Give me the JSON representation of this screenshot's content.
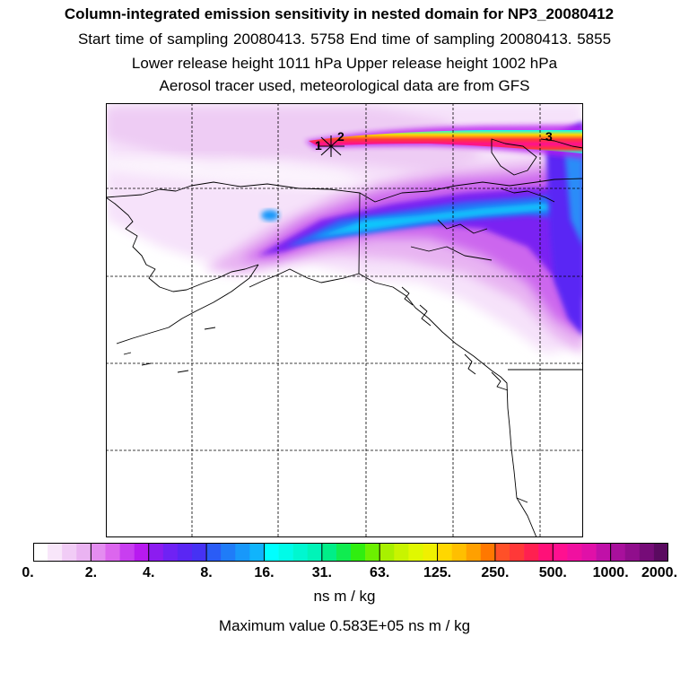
{
  "header": {
    "title": "Column-integrated emission sensitivity in nested domain for NP3_20080412",
    "sampling_line": "Start time of sampling 20080413.  5758     End time of sampling 20080413.  5855",
    "release_line": "Lower release height 1011 hPa        Upper release height 1002 hPa",
    "tracer_line": "Aerosol tracer used, meteorological data are from GFS"
  },
  "map": {
    "region": "Alaska, Yukon and British Columbia coast",
    "markers": [
      "1",
      "2",
      "3"
    ],
    "colors": {
      "land_border": "#000000",
      "grid": "#000000",
      "background": "#ffffff"
    }
  },
  "colorbar": {
    "ticks": [
      "0.",
      "2.",
      "4.",
      "8.",
      "16.",
      "31.",
      "63.",
      "125.",
      "250.",
      "500.",
      "1000.",
      "2000."
    ],
    "colors": [
      "#ffffff",
      "#f8e6fa",
      "#f1ccf6",
      "#eab3f2",
      "#e48df0",
      "#dc66ee",
      "#c83ef0",
      "#b81af0",
      "#8c1cf0",
      "#6f22f4",
      "#5a26f4",
      "#4632f4",
      "#2a5cf6",
      "#1f7cf8",
      "#1898fa",
      "#10b4fc",
      "#00ffff",
      "#00fbe8",
      "#00f7d0",
      "#00f4b8",
      "#00ee88",
      "#10ec50",
      "#30ee10",
      "#6cf000",
      "#a8f000",
      "#c8f400",
      "#e0f800",
      "#f0f000",
      "#ffd700",
      "#ffbf00",
      "#ffa000",
      "#ff7800",
      "#ff5028",
      "#ff3838",
      "#ff2050",
      "#ff1078",
      "#ff1090",
      "#f010a0",
      "#e010a8",
      "#c010a8",
      "#a8109c",
      "#900e8c",
      "#760c78",
      "#5a0a60"
    ],
    "unit": "ns m / kg",
    "max_value_text": "Maximum value  0.583E+05 ns m / kg"
  }
}
